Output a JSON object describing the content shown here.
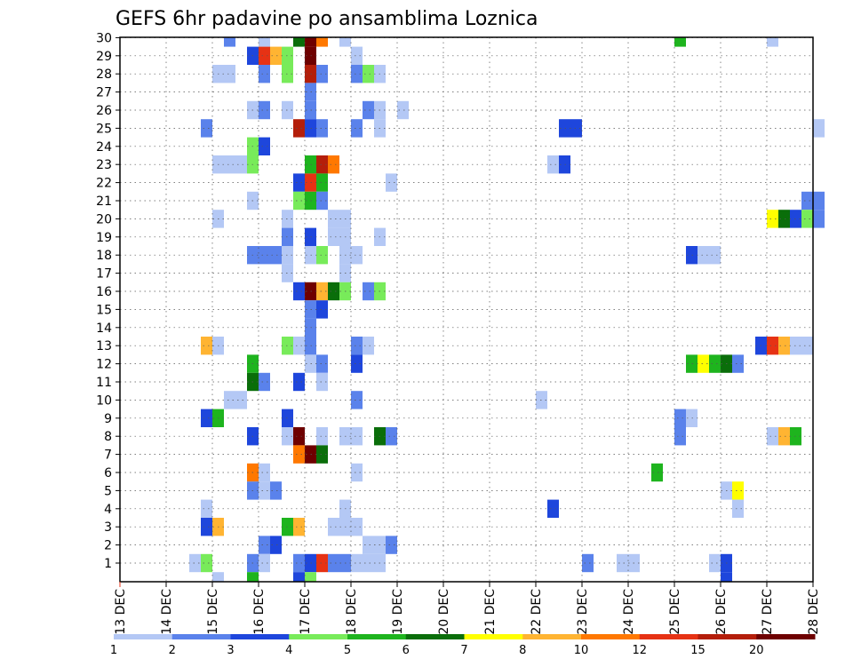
{
  "chart_data": {
    "type": "heatmap",
    "title": "GEFS 6hr padavine po ansamblima Loznica",
    "xlabel": "",
    "ylabel": "",
    "x_ticks": [
      "13 DEC",
      "14 DEC",
      "15 DEC",
      "16 DEC",
      "17 DEC",
      "18 DEC",
      "19 DEC",
      "20 DEC",
      "21 DEC",
      "22 DEC",
      "23 DEC",
      "24 DEC",
      "25 DEC",
      "26 DEC",
      "27 DEC",
      "28 DEC"
    ],
    "y_ticks": [
      "1",
      "2",
      "3",
      "4",
      "5",
      "6",
      "7",
      "8",
      "9",
      "10",
      "11",
      "12",
      "13",
      "14",
      "15",
      "16",
      "17",
      "18",
      "19",
      "20",
      "21",
      "22",
      "23",
      "24",
      "25",
      "26",
      "27",
      "28",
      "29",
      "30"
    ],
    "time_step_hours": 6,
    "grid": true,
    "legend": {
      "placement": "bottom",
      "labels": [
        "1",
        "2",
        "3",
        "4",
        "5",
        "6",
        "7",
        "8",
        "10",
        "12",
        "15",
        "20"
      ],
      "colors": [
        "#b4c8f5",
        "#5a82eb",
        "#1e46dc",
        "#78eb5a",
        "#1eb41e",
        "#0a6e0a",
        "#ffff00",
        "#ffb432",
        "#ff7800",
        "#e63214",
        "#b41e0a",
        "#6e0000"
      ]
    },
    "cells": [
      [
        30,
        9,
        1,
        "#5a82eb"
      ],
      [
        30,
        12,
        1,
        "#b4c8f5"
      ],
      [
        30,
        15,
        1,
        "#0a6e0a"
      ],
      [
        30,
        16,
        1,
        "#6e0000"
      ],
      [
        30,
        17,
        1,
        "#ff7800"
      ],
      [
        30,
        19,
        1,
        "#b4c8f5"
      ],
      [
        30,
        48,
        1,
        "#1eb41e"
      ],
      [
        30,
        56,
        1,
        "#b4c8f5"
      ],
      [
        29,
        11,
        1,
        "#1e46dc"
      ],
      [
        29,
        12,
        1,
        "#e63214"
      ],
      [
        29,
        13,
        1,
        "#ffb432"
      ],
      [
        29,
        14,
        1,
        "#78eb5a"
      ],
      [
        29,
        16,
        1,
        "#6e0000"
      ],
      [
        29,
        20,
        1,
        "#b4c8f5"
      ],
      [
        28,
        8,
        2,
        "#b4c8f5"
      ],
      [
        28,
        12,
        1,
        "#5a82eb"
      ],
      [
        28,
        14,
        1,
        "#78eb5a"
      ],
      [
        28,
        16,
        1,
        "#b41e0a"
      ],
      [
        28,
        17,
        1,
        "#5a82eb"
      ],
      [
        28,
        20,
        1,
        "#5a82eb"
      ],
      [
        28,
        21,
        1,
        "#78eb5a"
      ],
      [
        28,
        22,
        1,
        "#b4c8f5"
      ],
      [
        27,
        16,
        1,
        "#5a82eb"
      ],
      [
        26,
        11,
        1,
        "#b4c8f5"
      ],
      [
        26,
        12,
        1,
        "#5a82eb"
      ],
      [
        26,
        14,
        1,
        "#b4c8f5"
      ],
      [
        26,
        16,
        1,
        "#5a82eb"
      ],
      [
        26,
        21,
        1,
        "#5a82eb"
      ],
      [
        26,
        22,
        1,
        "#b4c8f5"
      ],
      [
        26,
        24,
        1,
        "#b4c8f5"
      ],
      [
        25,
        7,
        1,
        "#5a82eb"
      ],
      [
        25,
        15,
        1,
        "#b41e0a"
      ],
      [
        25,
        16,
        1,
        "#1e46dc"
      ],
      [
        25,
        17,
        1,
        "#5a82eb"
      ],
      [
        25,
        20,
        1,
        "#5a82eb"
      ],
      [
        25,
        22,
        1,
        "#b4c8f5"
      ],
      [
        25,
        38,
        2,
        "#1e46dc"
      ],
      [
        25,
        60,
        1,
        "#b4c8f5"
      ],
      [
        24,
        11,
        1,
        "#78eb5a"
      ],
      [
        24,
        12,
        1,
        "#1e46dc"
      ],
      [
        23,
        8,
        3,
        "#b4c8f5"
      ],
      [
        23,
        11,
        1,
        "#78eb5a"
      ],
      [
        23,
        16,
        1,
        "#1eb41e"
      ],
      [
        23,
        17,
        1,
        "#b41e0a"
      ],
      [
        23,
        18,
        1,
        "#ff7800"
      ],
      [
        23,
        37,
        1,
        "#b4c8f5"
      ],
      [
        23,
        38,
        1,
        "#1e46dc"
      ],
      [
        22,
        15,
        1,
        "#1e46dc"
      ],
      [
        22,
        16,
        1,
        "#e63214"
      ],
      [
        22,
        17,
        1,
        "#1eb41e"
      ],
      [
        22,
        23,
        1,
        "#b4c8f5"
      ],
      [
        21,
        11,
        1,
        "#b4c8f5"
      ],
      [
        21,
        15,
        1,
        "#78eb5a"
      ],
      [
        21,
        16,
        1,
        "#1eb41e"
      ],
      [
        21,
        17,
        1,
        "#5a82eb"
      ],
      [
        21,
        59,
        2,
        "#5a82eb"
      ],
      [
        20,
        8,
        1,
        "#b4c8f5"
      ],
      [
        20,
        14,
        1,
        "#b4c8f5"
      ],
      [
        20,
        18,
        2,
        "#b4c8f5"
      ],
      [
        20,
        56,
        1,
        "#ffff00"
      ],
      [
        20,
        57,
        1,
        "#0a6e0a"
      ],
      [
        20,
        58,
        1,
        "#1e46dc"
      ],
      [
        20,
        59,
        1,
        "#78eb5a"
      ],
      [
        20,
        60,
        1,
        "#5a82eb"
      ],
      [
        19,
        14,
        1,
        "#5a82eb"
      ],
      [
        19,
        16,
        1,
        "#1e46dc"
      ],
      [
        19,
        18,
        2,
        "#b4c8f5"
      ],
      [
        19,
        22,
        1,
        "#b4c8f5"
      ],
      [
        18,
        11,
        3,
        "#5a82eb"
      ],
      [
        18,
        14,
        1,
        "#b4c8f5"
      ],
      [
        18,
        16,
        1,
        "#b4c8f5"
      ],
      [
        18,
        17,
        1,
        "#78eb5a"
      ],
      [
        18,
        19,
        2,
        "#b4c8f5"
      ],
      [
        18,
        49,
        1,
        "#1e46dc"
      ],
      [
        18,
        50,
        2,
        "#b4c8f5"
      ],
      [
        17,
        14,
        1,
        "#b4c8f5"
      ],
      [
        17,
        19,
        1,
        "#b4c8f5"
      ],
      [
        16,
        15,
        1,
        "#1e46dc"
      ],
      [
        16,
        16,
        1,
        "#6e0000"
      ],
      [
        16,
        17,
        1,
        "#ffb432"
      ],
      [
        16,
        18,
        1,
        "#0a6e0a"
      ],
      [
        16,
        19,
        1,
        "#78eb5a"
      ],
      [
        16,
        21,
        1,
        "#5a82eb"
      ],
      [
        16,
        22,
        1,
        "#78eb5a"
      ],
      [
        15,
        16,
        1,
        "#5a82eb"
      ],
      [
        15,
        17,
        1,
        "#1e46dc"
      ],
      [
        14,
        16,
        1,
        "#5a82eb"
      ],
      [
        13,
        7,
        1,
        "#ffb432"
      ],
      [
        13,
        8,
        1,
        "#b4c8f5"
      ],
      [
        13,
        14,
        1,
        "#78eb5a"
      ],
      [
        13,
        15,
        1,
        "#b4c8f5"
      ],
      [
        13,
        16,
        1,
        "#5a82eb"
      ],
      [
        13,
        20,
        1,
        "#5a82eb"
      ],
      [
        13,
        21,
        1,
        "#b4c8f5"
      ],
      [
        13,
        55,
        1,
        "#1e46dc"
      ],
      [
        13,
        56,
        1,
        "#e63214"
      ],
      [
        13,
        57,
        1,
        "#ffb432"
      ],
      [
        13,
        58,
        2,
        "#b4c8f5"
      ],
      [
        12,
        11,
        1,
        "#1eb41e"
      ],
      [
        12,
        16,
        1,
        "#b4c8f5"
      ],
      [
        12,
        17,
        1,
        "#5a82eb"
      ],
      [
        12,
        20,
        1,
        "#1e46dc"
      ],
      [
        12,
        49,
        1,
        "#1eb41e"
      ],
      [
        12,
        50,
        1,
        "#ffff00"
      ],
      [
        12,
        51,
        1,
        "#1eb41e"
      ],
      [
        12,
        52,
        1,
        "#0a6e0a"
      ],
      [
        12,
        53,
        1,
        "#5a82eb"
      ],
      [
        11,
        11,
        1,
        "#0a6e0a"
      ],
      [
        11,
        12,
        1,
        "#5a82eb"
      ],
      [
        11,
        15,
        1,
        "#1e46dc"
      ],
      [
        11,
        17,
        1,
        "#b4c8f5"
      ],
      [
        10,
        9,
        2,
        "#b4c8f5"
      ],
      [
        10,
        20,
        1,
        "#5a82eb"
      ],
      [
        10,
        36,
        1,
        "#b4c8f5"
      ],
      [
        9,
        7,
        1,
        "#1e46dc"
      ],
      [
        9,
        8,
        1,
        "#1eb41e"
      ],
      [
        9,
        14,
        1,
        "#1e46dc"
      ],
      [
        9,
        48,
        1,
        "#5a82eb"
      ],
      [
        9,
        49,
        1,
        "#b4c8f5"
      ],
      [
        8,
        11,
        1,
        "#1e46dc"
      ],
      [
        8,
        14,
        1,
        "#b4c8f5"
      ],
      [
        8,
        15,
        1,
        "#6e0000"
      ],
      [
        8,
        17,
        1,
        "#b4c8f5"
      ],
      [
        8,
        19,
        2,
        "#b4c8f5"
      ],
      [
        8,
        22,
        1,
        "#0a6e0a"
      ],
      [
        8,
        23,
        1,
        "#5a82eb"
      ],
      [
        8,
        48,
        1,
        "#5a82eb"
      ],
      [
        8,
        56,
        1,
        "#b4c8f5"
      ],
      [
        8,
        57,
        1,
        "#ffb432"
      ],
      [
        8,
        58,
        1,
        "#1eb41e"
      ],
      [
        7,
        15,
        1,
        "#ff7800"
      ],
      [
        7,
        16,
        1,
        "#6e0000"
      ],
      [
        7,
        17,
        1,
        "#0a6e0a"
      ],
      [
        6,
        11,
        1,
        "#ff7800"
      ],
      [
        6,
        12,
        1,
        "#b4c8f5"
      ],
      [
        6,
        20,
        1,
        "#b4c8f5"
      ],
      [
        6,
        46,
        1,
        "#1eb41e"
      ],
      [
        5,
        11,
        1,
        "#5a82eb"
      ],
      [
        5,
        12,
        1,
        "#b4c8f5"
      ],
      [
        5,
        13,
        1,
        "#5a82eb"
      ],
      [
        5,
        52,
        1,
        "#b4c8f5"
      ],
      [
        5,
        53,
        1,
        "#ffff00"
      ],
      [
        4,
        7,
        1,
        "#b4c8f5"
      ],
      [
        4,
        19,
        1,
        "#b4c8f5"
      ],
      [
        4,
        37,
        1,
        "#1e46dc"
      ],
      [
        4,
        53,
        1,
        "#b4c8f5"
      ],
      [
        3,
        7,
        1,
        "#1e46dc"
      ],
      [
        3,
        8,
        1,
        "#ffb432"
      ],
      [
        3,
        14,
        1,
        "#1eb41e"
      ],
      [
        3,
        15,
        1,
        "#ffb432"
      ],
      [
        3,
        18,
        3,
        "#b4c8f5"
      ],
      [
        2,
        12,
        1,
        "#5a82eb"
      ],
      [
        2,
        13,
        1,
        "#1e46dc"
      ],
      [
        2,
        21,
        2,
        "#b4c8f5"
      ],
      [
        2,
        23,
        1,
        "#5a82eb"
      ],
      [
        1,
        6,
        1,
        "#b4c8f5"
      ],
      [
        1,
        7,
        1,
        "#78eb5a"
      ],
      [
        1,
        11,
        1,
        "#5a82eb"
      ],
      [
        1,
        12,
        1,
        "#b4c8f5"
      ],
      [
        1,
        15,
        1,
        "#5a82eb"
      ],
      [
        1,
        16,
        1,
        "#1e46dc"
      ],
      [
        1,
        17,
        1,
        "#e63214"
      ],
      [
        1,
        18,
        2,
        "#5a82eb"
      ],
      [
        1,
        20,
        3,
        "#b4c8f5"
      ],
      [
        1,
        40,
        1,
        "#5a82eb"
      ],
      [
        1,
        43,
        2,
        "#b4c8f5"
      ],
      [
        1,
        51,
        1,
        "#b4c8f5"
      ],
      [
        1,
        52,
        1,
        "#1e46dc"
      ],
      [
        0,
        8,
        1,
        "#b4c8f5"
      ],
      [
        0,
        11,
        1,
        "#1eb41e"
      ],
      [
        0,
        15,
        1,
        "#1e46dc"
      ],
      [
        0,
        16,
        1,
        "#78eb5a"
      ],
      [
        0,
        52,
        1,
        "#1e46dc"
      ]
    ]
  }
}
